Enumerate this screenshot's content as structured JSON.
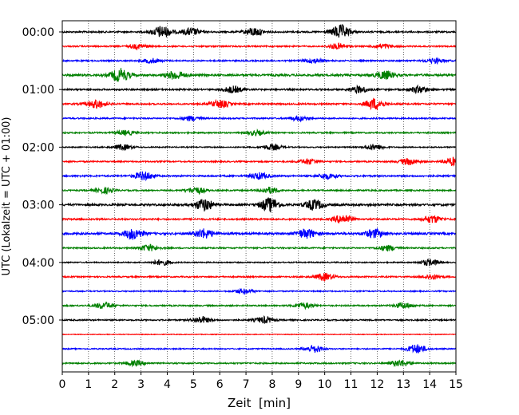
{
  "chart_data": {
    "type": "line",
    "subtype": "helicorder",
    "xlabel": "Zeit  [min]",
    "ylabel": "UTC (Lokalzeit = UTC + 01:00)",
    "xlim": [
      0,
      15
    ],
    "x_ticks": [
      "0",
      "1",
      "2",
      "3",
      "4",
      "5",
      "6",
      "7",
      "8",
      "9",
      "10",
      "11",
      "12",
      "13",
      "14",
      "15"
    ],
    "y_ticks": [
      "00:00",
      "01:00",
      "02:00",
      "03:00",
      "04:00",
      "05:00"
    ],
    "grid": "vertical dotted at each minute",
    "trace_interval_min": 15,
    "trace_colors": [
      "#000000",
      "#ff0000",
      "#0000ff",
      "#008000"
    ],
    "traces": [
      {
        "start": "00:00",
        "color": "#000000",
        "amplitude": 0.7,
        "bursts": [
          [
            3.8,
            1.3
          ],
          [
            4.9,
            0.8
          ],
          [
            7.3,
            0.9
          ],
          [
            10.6,
            1.5
          ]
        ]
      },
      {
        "start": "00:15",
        "color": "#ff0000",
        "amplitude": 0.6,
        "bursts": [
          [
            2.9,
            0.5
          ],
          [
            10.5,
            0.6
          ],
          [
            12.2,
            0.5
          ]
        ]
      },
      {
        "start": "00:30",
        "color": "#0000ff",
        "amplitude": 0.6,
        "bursts": [
          [
            3.4,
            0.5
          ],
          [
            9.6,
            0.5
          ],
          [
            14.2,
            0.5
          ]
        ]
      },
      {
        "start": "00:45",
        "color": "#008000",
        "amplitude": 0.9,
        "bursts": [
          [
            2.2,
            1.4
          ],
          [
            4.3,
            0.9
          ],
          [
            12.3,
            0.9
          ]
        ]
      },
      {
        "start": "01:00",
        "color": "#000000",
        "amplitude": 0.7,
        "bursts": [
          [
            6.5,
            0.7
          ],
          [
            11.3,
            0.7
          ],
          [
            13.6,
            0.7
          ]
        ]
      },
      {
        "start": "01:15",
        "color": "#ff0000",
        "amplitude": 0.7,
        "bursts": [
          [
            1.3,
            0.9
          ],
          [
            6.0,
            0.8
          ],
          [
            11.9,
            1.2
          ]
        ]
      },
      {
        "start": "01:30",
        "color": "#0000ff",
        "amplitude": 0.6,
        "bursts": [
          [
            4.9,
            0.5
          ],
          [
            9.0,
            0.5
          ]
        ]
      },
      {
        "start": "01:45",
        "color": "#008000",
        "amplitude": 0.6,
        "bursts": [
          [
            2.4,
            0.5
          ],
          [
            7.4,
            0.5
          ]
        ]
      },
      {
        "start": "02:00",
        "color": "#000000",
        "amplitude": 0.5,
        "bursts": [
          [
            2.3,
            0.6
          ],
          [
            8.0,
            0.6
          ],
          [
            11.9,
            0.6
          ]
        ]
      },
      {
        "start": "02:15",
        "color": "#ff0000",
        "amplitude": 0.6,
        "bursts": [
          [
            9.4,
            0.6
          ],
          [
            13.2,
            0.7
          ],
          [
            14.9,
            0.9
          ]
        ]
      },
      {
        "start": "02:30",
        "color": "#0000ff",
        "amplitude": 0.7,
        "bursts": [
          [
            3.1,
            0.9
          ],
          [
            7.5,
            0.7
          ],
          [
            10.1,
            0.6
          ]
        ]
      },
      {
        "start": "02:45",
        "color": "#008000",
        "amplitude": 0.6,
        "bursts": [
          [
            1.6,
            0.6
          ],
          [
            5.1,
            0.7
          ],
          [
            7.9,
            0.7
          ]
        ]
      },
      {
        "start": "03:00",
        "color": "#000000",
        "amplitude": 0.9,
        "bursts": [
          [
            5.4,
            1.3
          ],
          [
            7.9,
            1.5
          ],
          [
            9.6,
            1.1
          ]
        ]
      },
      {
        "start": "03:15",
        "color": "#ff0000",
        "amplitude": 0.7,
        "bursts": [
          [
            10.7,
            1.0
          ],
          [
            14.1,
            0.8
          ]
        ]
      },
      {
        "start": "03:30",
        "color": "#0000ff",
        "amplitude": 0.9,
        "bursts": [
          [
            2.7,
            1.2
          ],
          [
            5.4,
            1.0
          ],
          [
            9.3,
            1.0
          ],
          [
            11.9,
            0.9
          ]
        ]
      },
      {
        "start": "03:45",
        "color": "#008000",
        "amplitude": 0.6,
        "bursts": [
          [
            3.3,
            0.7
          ],
          [
            12.4,
            0.6
          ]
        ]
      },
      {
        "start": "04:00",
        "color": "#000000",
        "amplitude": 0.5,
        "bursts": [
          [
            3.8,
            0.6
          ],
          [
            14.0,
            0.7
          ]
        ]
      },
      {
        "start": "04:15",
        "color": "#ff0000",
        "amplitude": 0.6,
        "bursts": [
          [
            10.0,
            0.8
          ],
          [
            14.1,
            0.5
          ]
        ]
      },
      {
        "start": "04:30",
        "color": "#0000ff",
        "amplitude": 0.5,
        "bursts": [
          [
            6.9,
            0.5
          ]
        ]
      },
      {
        "start": "04:45",
        "color": "#008000",
        "amplitude": 0.6,
        "bursts": [
          [
            1.6,
            0.7
          ],
          [
            9.2,
            0.6
          ],
          [
            13.0,
            0.6
          ]
        ]
      },
      {
        "start": "05:00",
        "color": "#000000",
        "amplitude": 0.6,
        "bursts": [
          [
            5.3,
            0.7
          ],
          [
            7.7,
            0.7
          ]
        ]
      },
      {
        "start": "05:15",
        "color": "#ff0000",
        "amplitude": 0.3,
        "bursts": []
      },
      {
        "start": "05:30",
        "color": "#0000ff",
        "amplitude": 0.5,
        "bursts": [
          [
            9.6,
            0.8
          ],
          [
            13.5,
            1.0
          ]
        ]
      },
      {
        "start": "05:45",
        "color": "#008000",
        "amplitude": 0.6,
        "bursts": [
          [
            2.8,
            0.5
          ],
          [
            12.9,
            0.7
          ]
        ]
      }
    ]
  }
}
